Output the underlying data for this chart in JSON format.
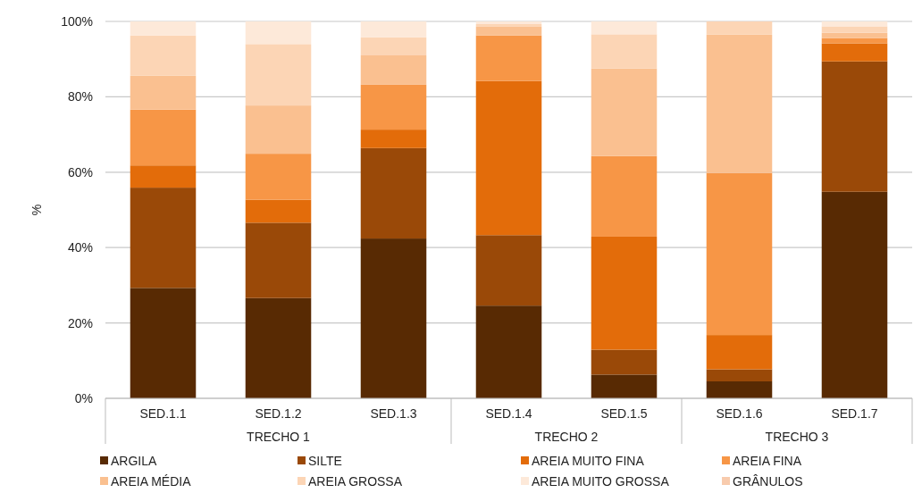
{
  "chart_data": {
    "type": "bar",
    "stacked": true,
    "ylabel": "%",
    "categories": [
      "SED.1.1",
      "SED.1.2",
      "SED.1.3",
      "SED.1.4",
      "SED.1.5",
      "SED.1.6",
      "SED.1.7"
    ],
    "annotations": [
      "TRECHO 1",
      "TRECHO 2",
      "TRECHO 3"
    ],
    "ylim": [
      0,
      100
    ],
    "yticks": [
      {
        "value": 0,
        "label": "0%"
      },
      {
        "value": 20,
        "label": "20%"
      },
      {
        "value": 40,
        "label": "40%"
      },
      {
        "value": 60,
        "label": "60%"
      },
      {
        "value": 80,
        "label": "80%"
      },
      {
        "value": 100,
        "label": "100%"
      }
    ],
    "grid": "y",
    "legend": "bottom",
    "series": [
      {
        "name": "ARGILA",
        "color": "#582a03",
        "values": [
          29.3,
          26.6,
          42.4,
          24.6,
          6.3,
          4.5,
          54.8
        ]
      },
      {
        "name": "SILTE",
        "color": "#9a4908",
        "values": [
          26.6,
          20.0,
          24.0,
          18.7,
          6.6,
          3.2,
          34.6
        ]
      },
      {
        "name": "AREIA MUITO FINA",
        "color": "#e36c0a",
        "values": [
          5.9,
          6.1,
          4.9,
          40.9,
          30.0,
          9.1,
          4.8
        ]
      },
      {
        "name": "AREIA FINA",
        "color": "#f79646",
        "values": [
          14.8,
          12.2,
          11.9,
          12.1,
          21.4,
          43.0,
          1.4
        ]
      },
      {
        "name": "AREIA MÉDIA",
        "color": "#fac090",
        "values": [
          9.0,
          12.8,
          7.8,
          2.3,
          23.2,
          36.7,
          1.4
        ]
      },
      {
        "name": "AREIA GROSSA",
        "color": "#fcd5b5",
        "values": [
          10.7,
          16.3,
          4.8,
          0.7,
          9.1,
          3.5,
          1.7
        ]
      },
      {
        "name": "AREIA MUITO GROSSA",
        "color": "#fde9d9",
        "values": [
          3.7,
          6.0,
          4.2,
          0.7,
          3.4,
          0,
          1.3
        ]
      },
      {
        "name": "GRÂNULOS",
        "color": "#f8cbad",
        "values": [
          0,
          0,
          0,
          0,
          0,
          0,
          0
        ]
      }
    ]
  }
}
